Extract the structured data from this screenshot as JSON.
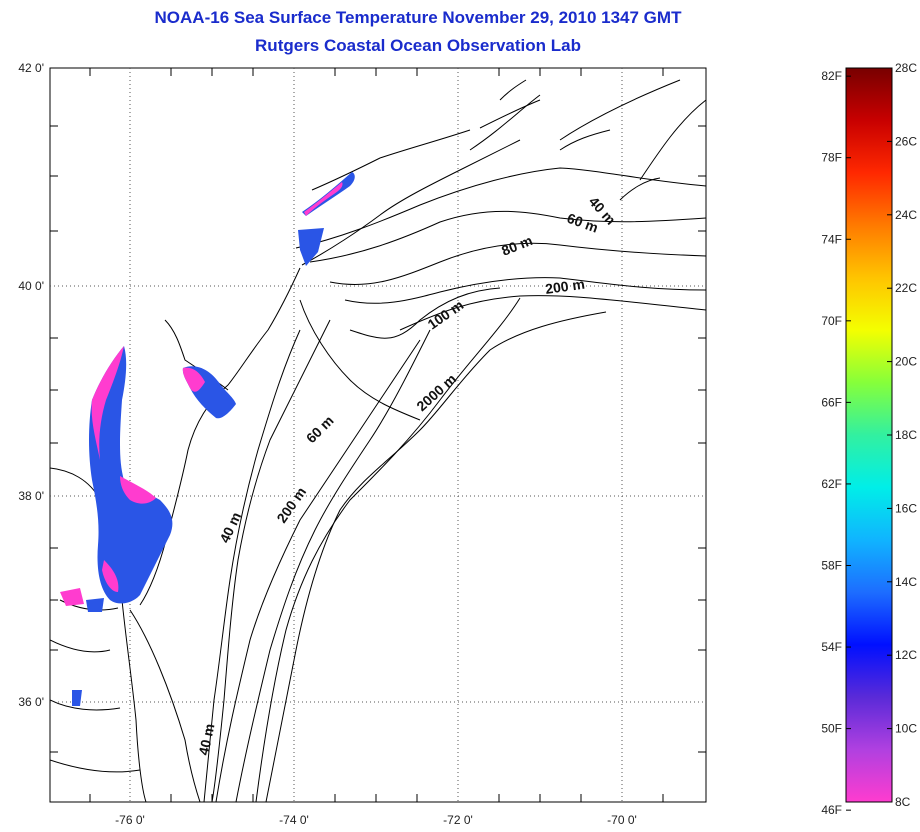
{
  "title": {
    "line1": "NOAA-16 Sea Surface Temperature November 29, 2010 1347 GMT",
    "line2": "Rutgers Coastal Ocean Observation Lab"
  },
  "axes": {
    "lat_labels": [
      "42 0'",
      "40 0'",
      "38 0'",
      "36 0'"
    ],
    "lon_labels": [
      "-76 0'",
      "-74 0'",
      "-72 0'",
      "-70 0'"
    ]
  },
  "contours": [
    "40 m",
    "60 m",
    "80 m",
    "200 m",
    "100 m",
    "2000 m",
    "60 m",
    "200 m",
    "40 m",
    "40 m"
  ],
  "colorbar": {
    "fahrenheit": [
      "82F",
      "78F",
      "74F",
      "70F",
      "66F",
      "62F",
      "58F",
      "54F",
      "50F",
      "46F"
    ],
    "celsius": [
      "28C",
      "26C",
      "24C",
      "22C",
      "20C",
      "18C",
      "16C",
      "14C",
      "12C",
      "10C",
      "8C"
    ],
    "gradient": [
      "#ff3ccf",
      "#b040e0",
      "#5a2ad8",
      "#0010ff",
      "#1d6dff",
      "#10b4ff",
      "#00eee8",
      "#32f0a0",
      "#86ff3a",
      "#f4ff00",
      "#ffc400",
      "#ff7a00",
      "#ff2800",
      "#c80000",
      "#780000"
    ]
  },
  "colors": {
    "title": "#1a2ccc",
    "cold_sst": "#2a55e6",
    "coldest_sst": "#ff3ccf"
  }
}
